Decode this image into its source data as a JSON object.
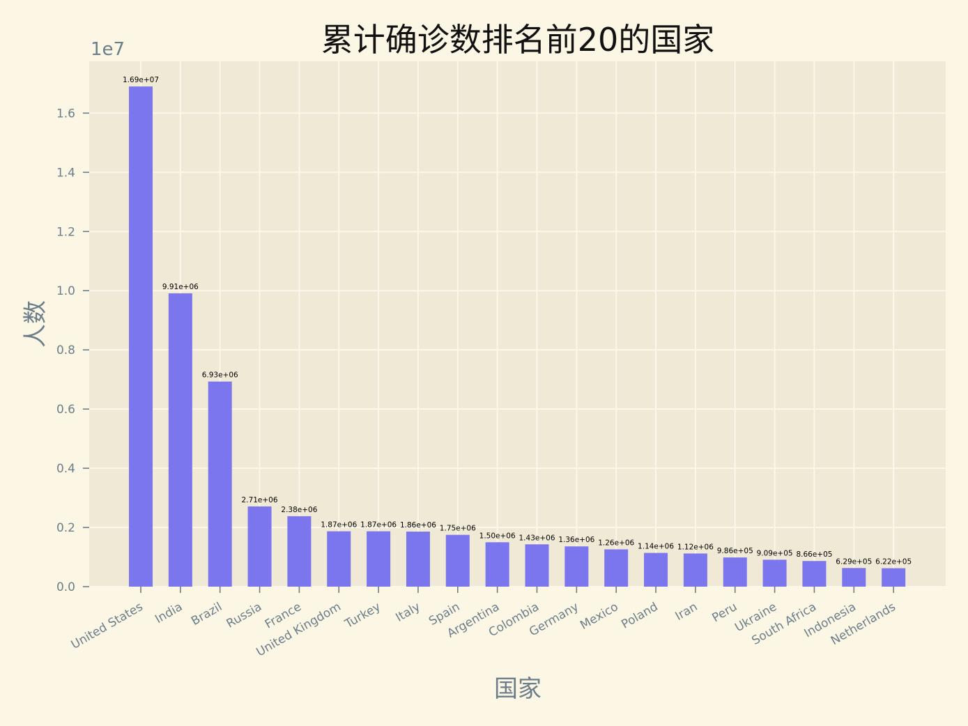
{
  "chart_data": {
    "type": "bar",
    "title": "累计确诊数排名前20的国家",
    "xlabel": "国家",
    "ylabel": "人数",
    "y_offset_label": "1e7",
    "ylim": [
      0,
      17750000
    ],
    "yticks": [
      0,
      2000000,
      4000000,
      6000000,
      8000000,
      10000000,
      12000000,
      14000000,
      16000000
    ],
    "ytick_labels": [
      "0.0",
      "0.2",
      "0.4",
      "0.6",
      "0.8",
      "1.0",
      "1.2",
      "1.4",
      "1.6"
    ],
    "grid": true,
    "categories": [
      "United States",
      "India",
      "Brazil",
      "Russia",
      "France",
      "United Kingdom",
      "Turkey",
      "Italy",
      "Spain",
      "Argentina",
      "Colombia",
      "Germany",
      "Mexico",
      "Poland",
      "Iran",
      "Peru",
      "Ukraine",
      "South Africa",
      "Indonesia",
      "Netherlands"
    ],
    "values": [
      16900000,
      9910000,
      6930000,
      2710000,
      2380000,
      1870000,
      1870000,
      1860000,
      1750000,
      1500000,
      1430000,
      1360000,
      1260000,
      1140000,
      1120000,
      986000,
      909000,
      866000,
      629000,
      622000
    ],
    "data_labels": [
      "1.69e+07",
      "9.91e+06",
      "6.93e+06",
      "2.71e+06",
      "2.38e+06",
      "1.87e+06",
      "1.87e+06",
      "1.86e+06",
      "1.75e+06",
      "1.50e+06",
      "1.43e+06",
      "1.36e+06",
      "1.26e+06",
      "1.14e+06",
      "1.12e+06",
      "9.86e+05",
      "9.09e+05",
      "8.66e+05",
      "6.29e+05",
      "6.22e+05"
    ],
    "bar_color": "#7b75ee",
    "background_color": "#fcf6e4",
    "plot_background_color": "#efe9d6",
    "grid_color": "#fbf7ea",
    "text_color": "#6b7e8a"
  }
}
